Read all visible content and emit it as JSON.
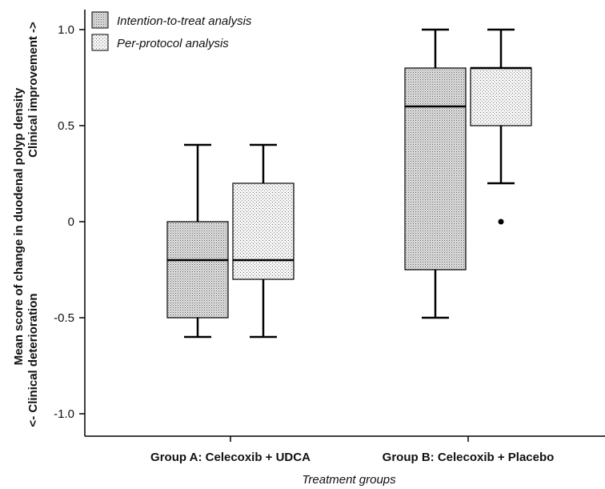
{
  "chart_data": {
    "type": "boxplot",
    "title": "",
    "xlabel": "Treatment groups",
    "ylabel_line1": "Mean score of change in duodenal polyp density",
    "ylabel_line2a": "<- Clinical deterioration",
    "ylabel_line2b": "Clinical improvement ->",
    "ylim": [
      -1.1,
      1.1
    ],
    "yticks": [
      1.0,
      0.5,
      0,
      -0.5,
      -1.0
    ],
    "ytick_labels": [
      "1.0",
      "0.5",
      "0",
      "-0.5",
      "-1.0"
    ],
    "categories": [
      "Group A: Celecoxib + UDCA",
      "Group B: Celecoxib + Placebo"
    ],
    "legend_position": "top-left",
    "series": [
      {
        "name": "Intention-to-treat analysis",
        "pattern": "dense-dots",
        "boxes": [
          {
            "whisker_low": -0.6,
            "q1": -0.5,
            "median": -0.2,
            "q3": 0.0,
            "whisker_high": 0.4,
            "outliers": []
          },
          {
            "whisker_low": -0.5,
            "q1": -0.25,
            "median": 0.6,
            "q3": 0.8,
            "whisker_high": 1.0,
            "outliers": []
          }
        ]
      },
      {
        "name": "Per-protocol analysis",
        "pattern": "sparse-dots",
        "boxes": [
          {
            "whisker_low": -0.6,
            "q1": -0.3,
            "median": -0.2,
            "q3": 0.2,
            "whisker_high": 0.4,
            "outliers": []
          },
          {
            "whisker_low": 0.2,
            "q1": 0.5,
            "median": 0.8,
            "q3": 0.8,
            "whisker_high": 1.0,
            "outliers": [
              0.0
            ]
          }
        ]
      }
    ]
  }
}
